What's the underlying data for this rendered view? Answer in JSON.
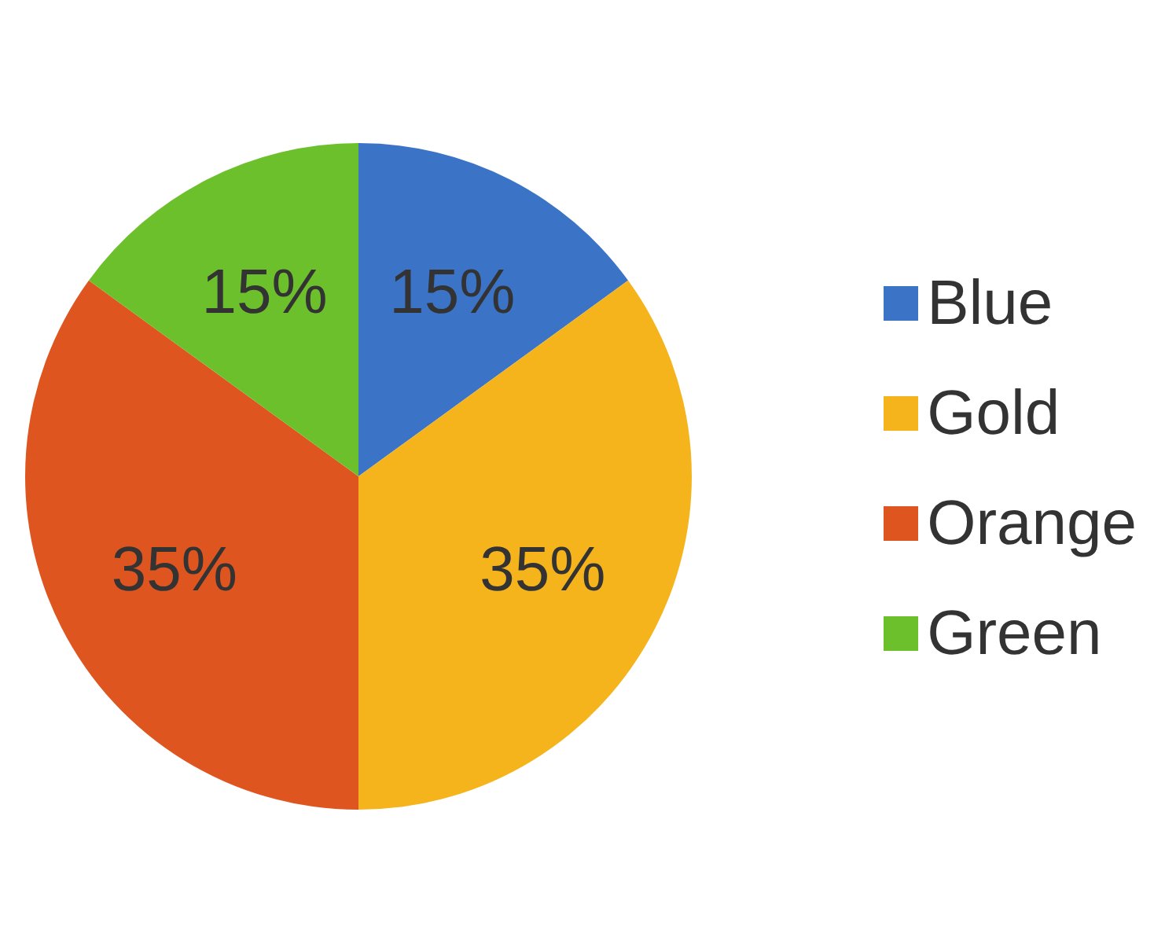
{
  "chart_data": {
    "type": "pie",
    "categories": [
      "Blue",
      "Gold",
      "Orange",
      "Green"
    ],
    "values": [
      15,
      35,
      35,
      15
    ],
    "value_labels": [
      "15%",
      "35%",
      "35%",
      "15%"
    ],
    "colors": [
      "#3b74c6",
      "#f5b41c",
      "#de5520",
      "#6cc02c"
    ],
    "legend": "right"
  }
}
